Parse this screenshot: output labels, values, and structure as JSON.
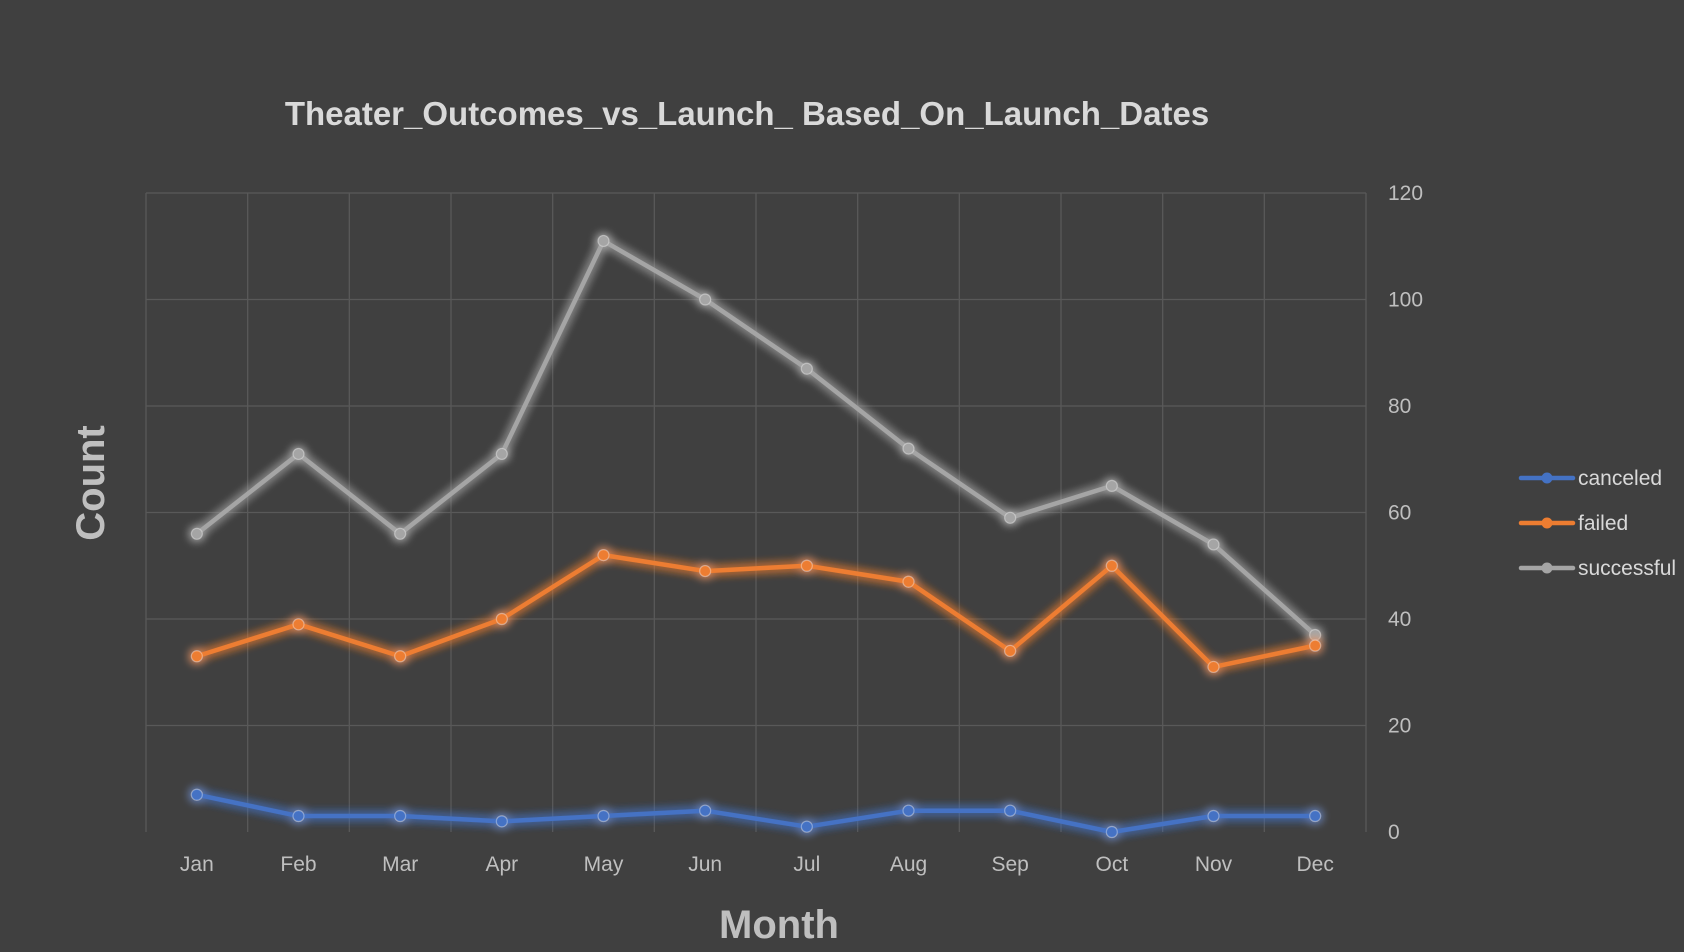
{
  "chart_data": {
    "type": "line",
    "title": "Theater_Outcomes_vs_Launch_ Based_On_Launch_Dates",
    "xlabel": "Month",
    "ylabel": "Count",
    "categories": [
      "Jan",
      "Feb",
      "Mar",
      "Apr",
      "May",
      "Jun",
      "Jul",
      "Aug",
      "Sep",
      "Oct",
      "Nov",
      "Dec"
    ],
    "ylim": [
      0,
      120
    ],
    "yticks": [
      0,
      20,
      40,
      60,
      80,
      100,
      120
    ],
    "y_axis_side": "right",
    "grid": true,
    "legend_position": "right",
    "series": [
      {
        "name": "canceled",
        "color": "#4472c4",
        "values": [
          7,
          3,
          3,
          2,
          3,
          4,
          1,
          4,
          4,
          0,
          3,
          3
        ]
      },
      {
        "name": "failed",
        "color": "#ed7d31",
        "values": [
          33,
          39,
          33,
          40,
          52,
          49,
          50,
          47,
          34,
          50,
          31,
          35
        ]
      },
      {
        "name": "successful",
        "color": "#a5a5a5",
        "values": [
          56,
          71,
          56,
          71,
          111,
          100,
          87,
          72,
          59,
          65,
          54,
          37
        ]
      }
    ]
  }
}
